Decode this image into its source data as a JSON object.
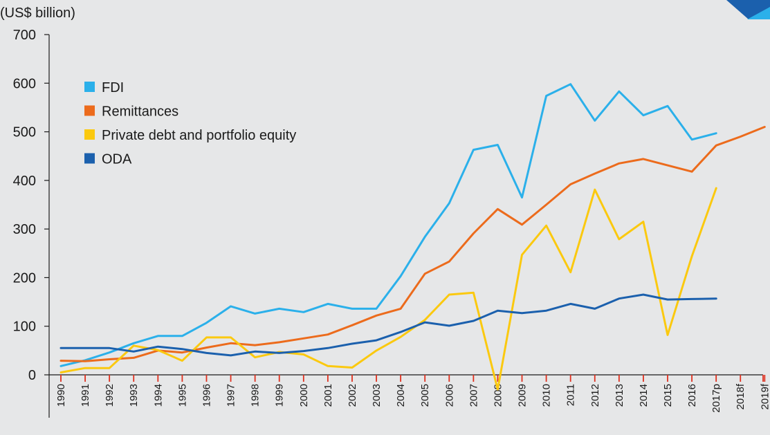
{
  "chart_data": {
    "type": "line",
    "unit_label": "(US$ billion)",
    "title": "",
    "xlabel": "",
    "ylabel": "",
    "ylim": [
      0,
      700
    ],
    "yticks": [
      0,
      100,
      200,
      300,
      400,
      500,
      600,
      700
    ],
    "categories": [
      "1990",
      "1991",
      "1992",
      "1993",
      "1994",
      "1995",
      "1996",
      "1997",
      "1998",
      "1999",
      "2000",
      "2001",
      "2002",
      "2003",
      "2004",
      "2005",
      "2006",
      "2007",
      "2008",
      "2009",
      "2010",
      "2011",
      "2012",
      "2013",
      "2014",
      "2015",
      "2016",
      "2017p",
      "2018f",
      "2019f"
    ],
    "legend_position": "top-left",
    "grid": false,
    "series": [
      {
        "name": "FDI",
        "color": "#2bb0ea",
        "values": [
          18,
          30,
          46,
          65,
          80,
          80,
          107,
          141,
          126,
          136,
          129,
          146,
          136,
          136,
          203,
          284,
          353,
          463,
          473,
          365,
          574,
          598,
          523,
          583,
          534,
          553,
          484,
          497,
          null,
          null
        ]
      },
      {
        "name": "Remittances",
        "color": "#ec6b1c",
        "values": [
          29,
          28,
          32,
          35,
          50,
          46,
          56,
          65,
          61,
          67,
          75,
          83,
          102,
          122,
          136,
          208,
          233,
          291,
          341,
          309,
          350,
          392,
          414,
          435,
          444,
          431,
          418,
          472,
          490,
          510
        ]
      },
      {
        "name": "Private debt and portfolio equity",
        "color": "#fbc90f",
        "values": [
          5,
          14,
          14,
          60,
          51,
          29,
          77,
          77,
          36,
          47,
          42,
          18,
          15,
          50,
          78,
          113,
          165,
          169,
          -30,
          247,
          307,
          211,
          381,
          279,
          315,
          82,
          244,
          384,
          null,
          null
        ]
      },
      {
        "name": "ODA",
        "color": "#1b60ad",
        "values": [
          55,
          55,
          55,
          48,
          58,
          53,
          45,
          40,
          48,
          45,
          49,
          55,
          64,
          71,
          88,
          108,
          101,
          111,
          132,
          127,
          132,
          146,
          136,
          157,
          165,
          155,
          156,
          157,
          null,
          null
        ]
      }
    ]
  },
  "decor": {
    "corner_color_dark": "#1b60ad",
    "corner_color_light": "#2bb0ea"
  }
}
